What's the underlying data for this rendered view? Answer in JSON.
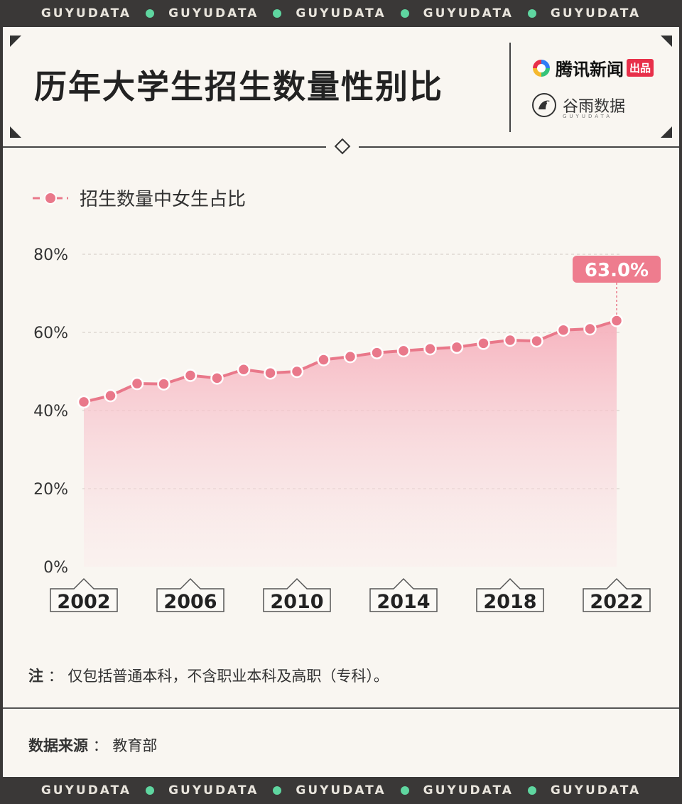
{
  "banner": {
    "segments": [
      "GUYUDATA",
      "GUYUDATA",
      "GUYUDATA",
      "GUYUDATA",
      "GUYUDATA"
    ],
    "dot_color": "#5fd6a0"
  },
  "header": {
    "title": "历年大学生招生数量性别比",
    "brand_primary": "腾讯新闻",
    "brand_primary_tag": "出品",
    "brand_secondary": "谷雨数据",
    "brand_secondary_sub": "GUYUDATA"
  },
  "colors": {
    "accent": "#e9788a",
    "area_top": "#f6b8c2",
    "label_bg": "#ee7c8e",
    "background": "#f9f6f1",
    "frame": "#3a3837"
  },
  "chart_data": {
    "type": "area",
    "title": "历年大学生招生数量性别比",
    "legend": "招生数量中女生占比",
    "legend_position": "top-left",
    "x": [
      2002,
      2003,
      2004,
      2005,
      2006,
      2007,
      2008,
      2009,
      2010,
      2011,
      2012,
      2013,
      2014,
      2015,
      2016,
      2017,
      2018,
      2019,
      2020,
      2021,
      2022
    ],
    "x_ticks": [
      "2002",
      "2006",
      "2010",
      "2014",
      "2018",
      "2022"
    ],
    "series": [
      {
        "name": "招生数量中女生占比",
        "values": [
          42.2,
          43.8,
          46.9,
          46.8,
          49.0,
          48.3,
          50.5,
          49.6,
          50.0,
          53.0,
          53.8,
          54.8,
          55.3,
          55.8,
          56.2,
          57.2,
          58.0,
          57.8,
          60.6,
          60.9,
          63.0
        ]
      }
    ],
    "y_ticks": [
      "0%",
      "20%",
      "40%",
      "60%",
      "80%"
    ],
    "ylim": [
      0,
      80
    ],
    "unit": "%",
    "annotation": "63.0%",
    "grid": true
  },
  "footer": {
    "note_label": "注",
    "note_sep": "：",
    "note_text": "仅包括普通本科，不含职业本科及高职（专科）。",
    "source_label": "数据来源",
    "source_sep": "：",
    "source_text": "教育部"
  }
}
